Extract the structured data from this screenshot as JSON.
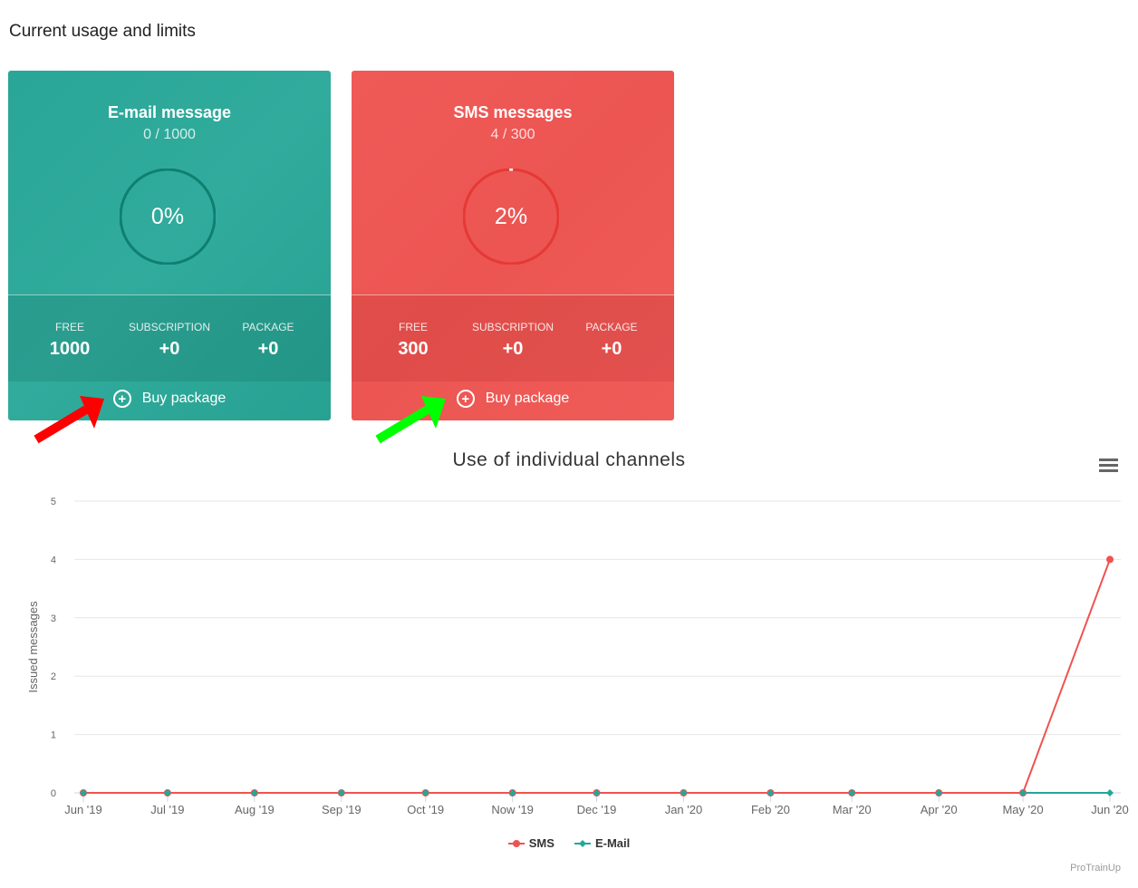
{
  "page_title": "Current usage and limits",
  "cards": [
    {
      "title": "E-mail message",
      "usage": "0 / 1000",
      "percent_label": "0%",
      "percent": 0,
      "color": "#2aa698",
      "ring_color": "#0e7f71",
      "stats": [
        {
          "label": "FREE",
          "value": "1000"
        },
        {
          "label": "SUBSCRIPTION",
          "value": "+0"
        },
        {
          "label": "PACKAGE",
          "value": "+0"
        }
      ],
      "buy_label": "Buy package",
      "buy_icon": "plus-circle-icon"
    },
    {
      "title": "SMS messages",
      "usage": "4 / 300",
      "percent_label": "2%",
      "percent": 2,
      "color": "#ef5a57",
      "ring_color": "#e53935",
      "stats": [
        {
          "label": "FREE",
          "value": "300"
        },
        {
          "label": "SUBSCRIPTION",
          "value": "+0"
        },
        {
          "label": "PACKAGE",
          "value": "+0"
        }
      ],
      "buy_label": "Buy package",
      "buy_icon": "plus-circle-icon"
    }
  ],
  "annotations": [
    {
      "icon": "arrow-icon",
      "color": "#ff0000"
    },
    {
      "icon": "arrow-icon",
      "color": "#00ff00"
    }
  ],
  "chart_menu_icon": "hamburger-menu-icon",
  "credit": "ProTrainUp",
  "chart_data": {
    "type": "line",
    "title": "Use of individual channels",
    "ylabel": "Issued messages",
    "xlabel": "",
    "ylim": [
      0,
      5
    ],
    "yticks": [
      0,
      1,
      2,
      3,
      4,
      5
    ],
    "grid": true,
    "legend": "bottom",
    "categories": [
      "Jun '19",
      "Jul '19",
      "Aug '19",
      "Sep '19",
      "Oct '19",
      "Now '19",
      "Dec '19",
      "Jan '20",
      "Feb '20",
      "Mar '20",
      "Apr '20",
      "May '20",
      "Jun '20"
    ],
    "dates": [
      "2019-06-01",
      "2019-07-01",
      "2019-08-01",
      "2019-09-01",
      "2019-10-01",
      "2019-11-01",
      "2019-12-01",
      "2020-01-01",
      "2020-02-01",
      "2020-03-01",
      "2020-04-01",
      "2020-05-01",
      "2020-06-01"
    ],
    "series": [
      {
        "name": "SMS",
        "color": "#ef5350",
        "marker": "circle",
        "values": [
          0,
          0,
          0,
          0,
          0,
          0,
          0,
          0,
          0,
          0,
          0,
          0,
          4
        ]
      },
      {
        "name": "E-Mail",
        "color": "#26a69a",
        "marker": "diamond",
        "values": [
          0,
          0,
          0,
          0,
          0,
          0,
          0,
          0,
          0,
          0,
          0,
          0,
          0
        ]
      }
    ]
  }
}
